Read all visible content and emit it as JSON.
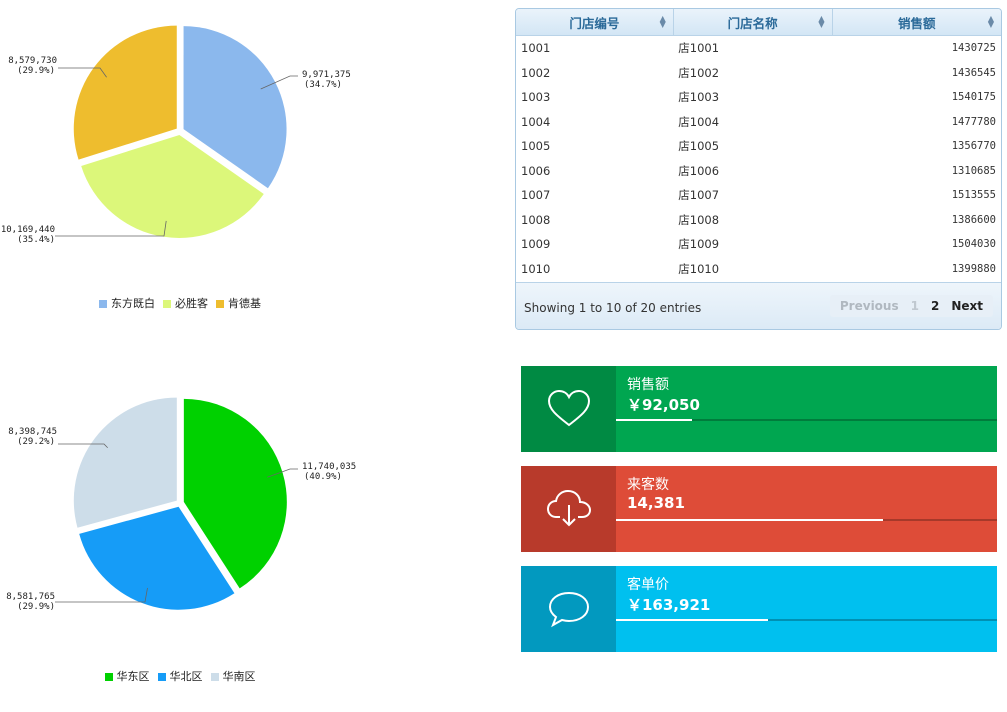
{
  "pie1": {
    "chart_data": {
      "type": "pie",
      "series": [
        {
          "name": "东方既白",
          "value": 9971375,
          "label": "9,971,375",
          "pct": "(34.7%)",
          "color": "#8bb8ed"
        },
        {
          "name": "必胜客",
          "value": 10169440,
          "label": "10,169,440",
          "pct": "(35.4%)",
          "color": "#dcf77a"
        },
        {
          "name": "肯德基",
          "value": 8579730,
          "label": "8,579,730",
          "pct": "(29.9%)",
          "color": "#eebd2e"
        }
      ],
      "legend_position": "bottom"
    }
  },
  "pie2": {
    "chart_data": {
      "type": "pie",
      "series": [
        {
          "name": "华东区",
          "value": 11740035,
          "label": "11,740,035",
          "pct": "(40.9%)",
          "color": "#00d100"
        },
        {
          "name": "华北区",
          "value": 8581765,
          "label": "8,581,765",
          "pct": "(29.9%)",
          "color": "#169cf7"
        },
        {
          "name": "华南区",
          "value": 8398745,
          "label": "8,398,745",
          "pct": "(29.2%)",
          "color": "#cddde9"
        }
      ],
      "legend_position": "bottom"
    }
  },
  "table": {
    "headers": [
      "门店编号",
      "门店名称",
      "销售额"
    ],
    "rows": [
      [
        "1001",
        "店1001",
        "1430725"
      ],
      [
        "1002",
        "店1002",
        "1436545"
      ],
      [
        "1003",
        "店1003",
        "1540175"
      ],
      [
        "1004",
        "店1004",
        "1477780"
      ],
      [
        "1005",
        "店1005",
        "1356770"
      ],
      [
        "1006",
        "店1006",
        "1310685"
      ],
      [
        "1007",
        "店1007",
        "1513555"
      ],
      [
        "1008",
        "店1008",
        "1386600"
      ],
      [
        "1009",
        "店1009",
        "1504030"
      ],
      [
        "1010",
        "店1010",
        "1399880"
      ]
    ],
    "info": "Showing 1 to 10 of 20 entries",
    "pager": {
      "previous": "Previous",
      "page1": "1",
      "page2": "2",
      "next": "Next"
    }
  },
  "stats": [
    {
      "label": "销售额",
      "value": "￥92,050",
      "progress": 0.2,
      "icon": "heart-icon",
      "color": "#00a650",
      "icon_bg": "#008a43"
    },
    {
      "label": "来客数",
      "value": "14,381",
      "progress": 0.7,
      "icon": "cloud-download-icon",
      "color": "#de4c38",
      "icon_bg": "#b83a2b"
    },
    {
      "label": "客单价",
      "value": "￥163,921",
      "progress": 0.4,
      "icon": "comment-icon",
      "color": "#00c0ef",
      "icon_bg": "#0299bf"
    }
  ]
}
